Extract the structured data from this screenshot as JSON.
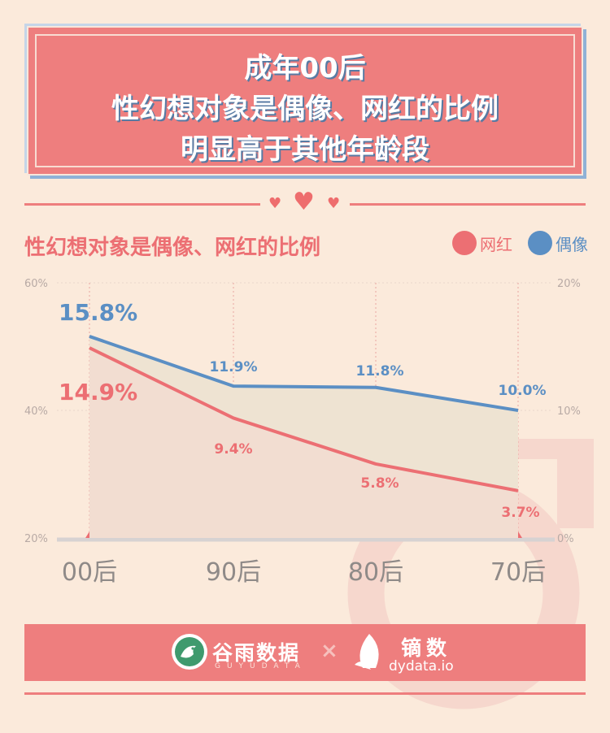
{
  "header": {
    "title_line1": "成年00后",
    "title_line2": "性幻想对象是偶像、网红的比例",
    "title_line3": "明显高于其他年龄段"
  },
  "colors": {
    "background": "#fbeadb",
    "accent": "#ee7e7e",
    "wanghong": "#ec6f73",
    "ouxiang": "#5b8fc4"
  },
  "chart_data": {
    "type": "line",
    "title": "性幻想对象是偶像、网红的比例",
    "categories": [
      "00后",
      "90后",
      "80后",
      "70后"
    ],
    "legend_position": "top-right",
    "left_axis": {
      "ticks": [
        "60%",
        "40%",
        "20%"
      ],
      "ylim": [
        20,
        60
      ]
    },
    "right_axis": {
      "ticks": [
        "20%",
        "10%",
        "0%"
      ],
      "ylim": [
        0,
        20
      ]
    },
    "series": [
      {
        "name": "网红",
        "values": [
          14.9,
          9.4,
          5.8,
          3.7
        ],
        "labels": [
          "14.9%",
          "9.4%",
          "5.8%",
          "3.7%"
        ],
        "color": "#ec6f73"
      },
      {
        "name": "偶像",
        "values": [
          15.8,
          11.9,
          11.8,
          10.0
        ],
        "labels": [
          "15.8%",
          "11.9%",
          "11.8%",
          "10.0%"
        ],
        "color": "#5b8fc4"
      }
    ],
    "grid": "vertical-dotted"
  },
  "footer": {
    "brand1_name": "谷雨数据",
    "brand1_sub": "GUYUDATA",
    "separator": "×",
    "brand2_name": "镝数",
    "brand2_sub": "dydata.io"
  }
}
